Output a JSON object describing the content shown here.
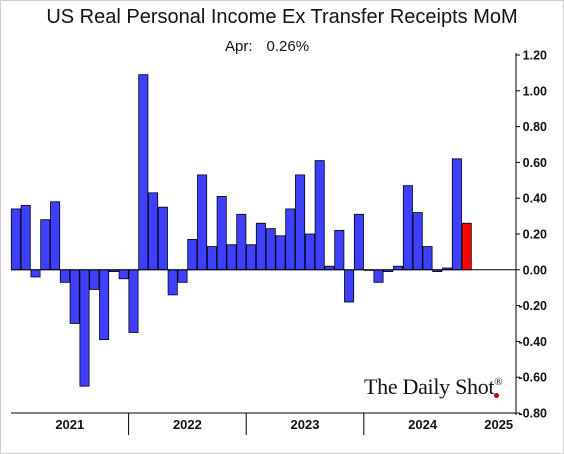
{
  "chart_data": {
    "type": "bar",
    "title": "US Real Personal Income Ex Transfer Receipts MoM",
    "annotation": {
      "label": "Apr:",
      "value": "0.26%"
    },
    "year_labels": [
      "2021",
      "2022",
      "2023",
      "2024",
      "2025"
    ],
    "y_ticks": [
      "1.20",
      "1.00",
      "0.80",
      "0.60",
      "0.40",
      "0.20",
      "0.00",
      "-0.20",
      "-0.40",
      "-0.60",
      "-0.80"
    ],
    "ylim": [
      -0.8,
      1.2
    ],
    "x_start": "2021-01",
    "values": [
      0.34,
      0.36,
      -0.04,
      0.28,
      0.38,
      -0.07,
      -0.3,
      -0.65,
      -0.11,
      -0.39,
      -0.01,
      -0.05,
      -0.35,
      1.09,
      0.43,
      0.35,
      -0.14,
      -0.07,
      0.17,
      0.53,
      0.13,
      0.41,
      0.14,
      0.31,
      0.14,
      0.26,
      0.23,
      0.19,
      0.34,
      0.53,
      0.2,
      0.61,
      0.02,
      0.22,
      -0.18,
      0.31,
      0.0,
      -0.07,
      -0.01,
      0.02,
      0.47,
      0.32,
      0.13,
      -0.01,
      0.01,
      0.62,
      0.26
    ],
    "colors": {
      "bar": "#3f3fff",
      "highlight": "#ff0000",
      "outline": "#000000"
    },
    "grid": false,
    "legend": "none"
  },
  "watermark": {
    "text": "The Daily Shot",
    "mark": "®"
  }
}
